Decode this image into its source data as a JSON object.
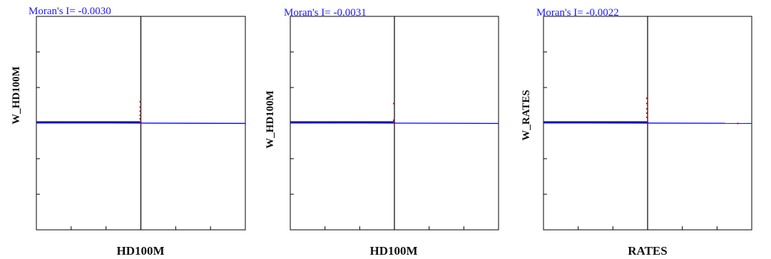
{
  "colors": {
    "title": "#1a1aff",
    "regression_line": "#0000ff",
    "points": "#cc0000",
    "frame": "#000000",
    "points_dark": "#000080"
  },
  "chart_data": [
    {
      "type": "scatter",
      "title": "Moran's I= -0.0030",
      "xlabel": "HD100M",
      "ylabel": "W_HD100M",
      "grid": false,
      "moran_i": -0.003,
      "xlim": [
        -3,
        3
      ],
      "ylim": [
        -3,
        3
      ],
      "x_ticks": [
        -3,
        -2,
        -1,
        0,
        1,
        2,
        3
      ],
      "y_ticks": [
        -3,
        -2,
        -1,
        0,
        1,
        2,
        3
      ],
      "cluster": {
        "x_min": -3.0,
        "x_max": 0.0,
        "y": 0.0
      },
      "points": [
        {
          "x": -0.02,
          "y": 0.6
        },
        {
          "x": -0.02,
          "y": 0.45
        },
        {
          "x": -0.02,
          "y": 0.33
        },
        {
          "x": -0.02,
          "y": 0.22
        },
        {
          "x": -0.02,
          "y": 0.12
        },
        {
          "x": 0.0,
          "y": 0.02
        }
      ]
    },
    {
      "type": "scatter",
      "title": "Moran's I= -0.0031",
      "xlabel": "HD100M",
      "ylabel": "W_HD100M",
      "grid": false,
      "moran_i": -0.0031,
      "xlim": [
        -3,
        3
      ],
      "ylim": [
        -3,
        3
      ],
      "x_ticks": [
        -3,
        -2,
        -1,
        0,
        1,
        2,
        3
      ],
      "y_ticks": [
        -3,
        -2,
        -1,
        0,
        1,
        2,
        3
      ],
      "cluster": {
        "x_min": -3.0,
        "x_max": 0.0,
        "y": 0.0
      },
      "points": [
        {
          "x": -0.02,
          "y": 0.55
        },
        {
          "x": -0.02,
          "y": 0.08
        },
        {
          "x": 0.0,
          "y": 0.02
        }
      ]
    },
    {
      "type": "scatter",
      "title": "Moran's I= -0.0022",
      "xlabel": "RATES",
      "ylabel": "W_RATES",
      "grid": false,
      "moran_i": -0.0022,
      "xlim": [
        -3,
        3
      ],
      "ylim": [
        -3,
        3
      ],
      "x_ticks": [
        -3,
        -2,
        -1,
        0,
        1,
        2,
        3
      ],
      "y_ticks": [
        -3,
        -2,
        -1,
        0,
        1,
        2,
        3
      ],
      "cluster": {
        "x_min": -3.0,
        "x_max": 0.0,
        "y": 0.0
      },
      "points": [
        {
          "x": -0.02,
          "y": 0.7
        },
        {
          "x": -0.02,
          "y": 0.55
        },
        {
          "x": -0.02,
          "y": 0.4
        },
        {
          "x": -0.02,
          "y": 0.28
        },
        {
          "x": -0.02,
          "y": 0.16
        },
        {
          "x": 0.0,
          "y": 0.04
        },
        {
          "x": 2.6,
          "y": -0.01
        }
      ]
    }
  ]
}
